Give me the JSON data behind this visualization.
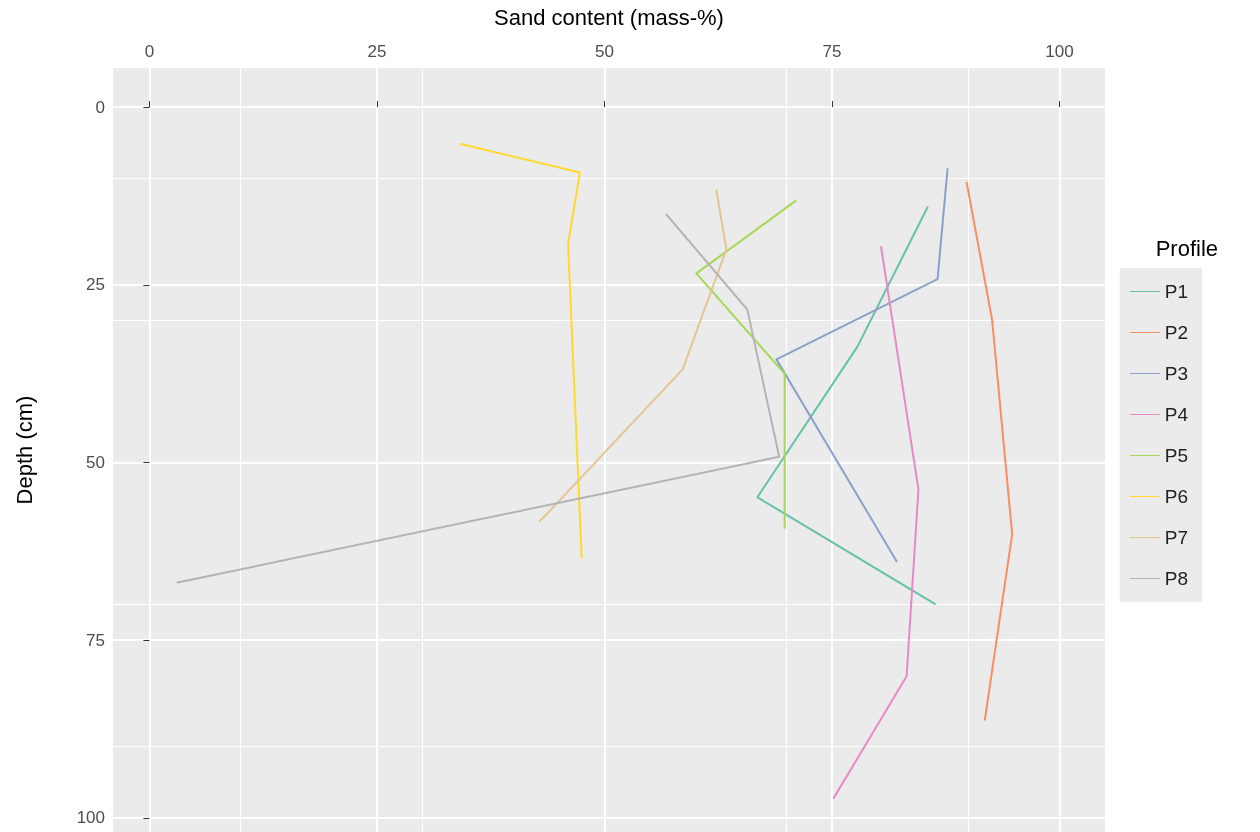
{
  "chart_data": {
    "type": "line",
    "xlabel": "Sand content (mass-%)",
    "ylabel": "Depth (cm)",
    "legend_title": "Profile",
    "xlim": [
      -4,
      105
    ],
    "xticks": [
      0,
      25,
      50,
      75,
      100
    ],
    "ylim": [
      102,
      -5.5
    ],
    "yticks": [
      0,
      25,
      50,
      75,
      100
    ],
    "grid": true,
    "legend": "right",
    "marker": "none",
    "line_style": "solid",
    "series": [
      {
        "name": "P1",
        "color": "#66c2a5",
        "x": [
          85.5,
          77.8,
          66.8,
          86.3
        ],
        "values": [
          14.1,
          33.7,
          54.9,
          69.9
        ]
      },
      {
        "name": "P2",
        "color": "#fc8d62",
        "x": [
          89.8,
          92.6,
          94.8,
          91.8
        ],
        "values": [
          10.6,
          30,
          60.1,
          86.2
        ]
      },
      {
        "name": "P3",
        "color": "#8da0cb",
        "x": [
          87.7,
          86.6,
          68.9,
          82.1
        ],
        "values": [
          8.7,
          24.2,
          35.5,
          63.9
        ]
      },
      {
        "name": "P4",
        "color": "#e78ac3",
        "x": [
          80.4,
          84.5,
          83.2,
          75.2
        ],
        "values": [
          19.7,
          53.8,
          80.1,
          97.2
        ]
      },
      {
        "name": "P5",
        "color": "#a6d854",
        "x": [
          71,
          60.1,
          69.8,
          69.8
        ],
        "values": [
          13.2,
          23.4,
          37.5,
          59.2
        ]
      },
      {
        "name": "P6",
        "color": "#ffd92f",
        "x": [
          34.2,
          47.3,
          46,
          47.5
        ],
        "values": [
          5.2,
          9.2,
          19.3,
          63.4
        ]
      },
      {
        "name": "P7",
        "color": "#e5c494",
        "x": [
          62.3,
          63.4,
          58.6,
          42.9
        ],
        "values": [
          11.7,
          20,
          36.9,
          58.3
        ]
      },
      {
        "name": "P8",
        "color": "#b3b3b3",
        "x": [
          56.8,
          65.7,
          69.2,
          3.1
        ],
        "values": [
          15.1,
          28.5,
          49.2,
          66.9
        ]
      }
    ]
  }
}
